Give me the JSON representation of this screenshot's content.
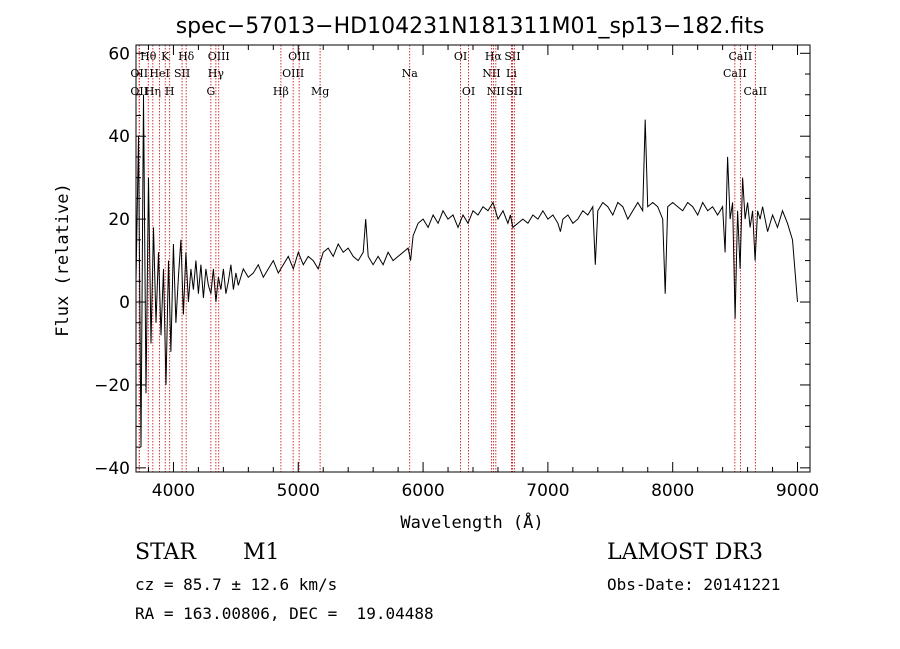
{
  "chart_data": {
    "type": "line",
    "title": "spec−57013−HD104231N181311M01_sp13−182.fits",
    "xlabel": "Wavelength (Å)",
    "ylabel": "Flux (relative)",
    "xlim": [
      3700,
      9100
    ],
    "ylim": [
      -41,
      62
    ],
    "xticks": [
      4000,
      5000,
      6000,
      7000,
      8000,
      9000
    ],
    "yticks": [
      -40,
      -20,
      0,
      20,
      40,
      60
    ],
    "ytick_labels": [
      "−40",
      "−20",
      "0",
      "20",
      "40",
      "60"
    ],
    "series": [
      {
        "color": "#000000",
        "points": [
          [
            3700,
            5
          ],
          [
            3720,
            40
          ],
          [
            3740,
            -35
          ],
          [
            3760,
            50
          ],
          [
            3780,
            -22
          ],
          [
            3800,
            30
          ],
          [
            3820,
            -10
          ],
          [
            3840,
            18
          ],
          [
            3860,
            -5
          ],
          [
            3880,
            12
          ],
          [
            3900,
            -8
          ],
          [
            3920,
            8
          ],
          [
            3940,
            -20
          ],
          [
            3960,
            10
          ],
          [
            3980,
            -12
          ],
          [
            4000,
            14
          ],
          [
            4020,
            -5
          ],
          [
            4040,
            6
          ],
          [
            4060,
            15
          ],
          [
            4080,
            -3
          ],
          [
            4100,
            12
          ],
          [
            4120,
            0
          ],
          [
            4140,
            8
          ],
          [
            4160,
            3
          ],
          [
            4180,
            10
          ],
          [
            4200,
            2
          ],
          [
            4220,
            9
          ],
          [
            4240,
            1
          ],
          [
            4260,
            8
          ],
          [
            4280,
            4
          ],
          [
            4300,
            2
          ],
          [
            4320,
            8
          ],
          [
            4340,
            0
          ],
          [
            4360,
            6
          ],
          [
            4380,
            3
          ],
          [
            4400,
            8
          ],
          [
            4420,
            2
          ],
          [
            4440,
            5
          ],
          [
            4460,
            9
          ],
          [
            4480,
            3
          ],
          [
            4500,
            7
          ],
          [
            4520,
            4
          ],
          [
            4560,
            8
          ],
          [
            4600,
            6
          ],
          [
            4640,
            7
          ],
          [
            4680,
            9
          ],
          [
            4720,
            6
          ],
          [
            4760,
            8
          ],
          [
            4800,
            10
          ],
          [
            4840,
            7
          ],
          [
            4880,
            9
          ],
          [
            4920,
            11
          ],
          [
            4960,
            8
          ],
          [
            5000,
            12
          ],
          [
            5040,
            9
          ],
          [
            5080,
            11
          ],
          [
            5120,
            10
          ],
          [
            5160,
            8
          ],
          [
            5200,
            12
          ],
          [
            5240,
            13
          ],
          [
            5280,
            11
          ],
          [
            5320,
            14
          ],
          [
            5360,
            12
          ],
          [
            5400,
            13
          ],
          [
            5440,
            11
          ],
          [
            5480,
            10
          ],
          [
            5520,
            12
          ],
          [
            5540,
            20
          ],
          [
            5560,
            11
          ],
          [
            5600,
            9
          ],
          [
            5640,
            11
          ],
          [
            5680,
            9
          ],
          [
            5720,
            12
          ],
          [
            5760,
            10
          ],
          [
            5800,
            11
          ],
          [
            5840,
            12
          ],
          [
            5880,
            13
          ],
          [
            5900,
            10
          ],
          [
            5920,
            16
          ],
          [
            5960,
            19
          ],
          [
            6000,
            20
          ],
          [
            6040,
            18
          ],
          [
            6080,
            21
          ],
          [
            6120,
            19
          ],
          [
            6160,
            22
          ],
          [
            6200,
            20
          ],
          [
            6240,
            21
          ],
          [
            6280,
            18
          ],
          [
            6320,
            21
          ],
          [
            6360,
            19
          ],
          [
            6400,
            22
          ],
          [
            6440,
            21
          ],
          [
            6480,
            23
          ],
          [
            6520,
            22
          ],
          [
            6560,
            24
          ],
          [
            6600,
            20
          ],
          [
            6640,
            22
          ],
          [
            6680,
            19
          ],
          [
            6700,
            21
          ],
          [
            6720,
            18
          ],
          [
            6760,
            19
          ],
          [
            6800,
            20
          ],
          [
            6840,
            19
          ],
          [
            6880,
            21
          ],
          [
            6920,
            20
          ],
          [
            6960,
            22
          ],
          [
            7000,
            20
          ],
          [
            7040,
            21
          ],
          [
            7080,
            19
          ],
          [
            7100,
            17
          ],
          [
            7120,
            20
          ],
          [
            7160,
            21
          ],
          [
            7200,
            19
          ],
          [
            7240,
            20
          ],
          [
            7280,
            22
          ],
          [
            7320,
            21
          ],
          [
            7360,
            23
          ],
          [
            7380,
            9
          ],
          [
            7400,
            22
          ],
          [
            7440,
            24
          ],
          [
            7480,
            23
          ],
          [
            7520,
            21
          ],
          [
            7560,
            24
          ],
          [
            7600,
            23
          ],
          [
            7640,
            20
          ],
          [
            7680,
            22
          ],
          [
            7720,
            24
          ],
          [
            7760,
            22
          ],
          [
            7780,
            44
          ],
          [
            7800,
            23
          ],
          [
            7840,
            24
          ],
          [
            7880,
            23
          ],
          [
            7920,
            20
          ],
          [
            7940,
            2
          ],
          [
            7960,
            23
          ],
          [
            8000,
            24
          ],
          [
            8040,
            23
          ],
          [
            8080,
            22
          ],
          [
            8120,
            24
          ],
          [
            8160,
            23
          ],
          [
            8200,
            21
          ],
          [
            8240,
            24
          ],
          [
            8280,
            22
          ],
          [
            8320,
            23
          ],
          [
            8360,
            21
          ],
          [
            8400,
            23
          ],
          [
            8420,
            12
          ],
          [
            8440,
            35
          ],
          [
            8460,
            20
          ],
          [
            8480,
            24
          ],
          [
            8500,
            -4
          ],
          [
            8520,
            22
          ],
          [
            8540,
            8
          ],
          [
            8560,
            30
          ],
          [
            8580,
            20
          ],
          [
            8600,
            24
          ],
          [
            8620,
            18
          ],
          [
            8640,
            22
          ],
          [
            8660,
            10
          ],
          [
            8680,
            22
          ],
          [
            8700,
            20
          ],
          [
            8720,
            23
          ],
          [
            8760,
            17
          ],
          [
            8800,
            21
          ],
          [
            8840,
            18
          ],
          [
            8880,
            22
          ],
          [
            8920,
            19
          ],
          [
            8960,
            15
          ],
          [
            9000,
            0
          ]
        ]
      }
    ],
    "line_markers": [
      {
        "x": 3726,
        "label": "OII",
        "row": 1
      },
      {
        "x": 3726,
        "label": "OII",
        "row": 2
      },
      {
        "x": 3798,
        "label": "Hθ",
        "row": 0
      },
      {
        "x": 3835,
        "label": "Hη",
        "row": 2
      },
      {
        "x": 3889,
        "label": "HeI",
        "row": 1
      },
      {
        "x": 3934,
        "label": "K",
        "row": 0
      },
      {
        "x": 3970,
        "label": "H",
        "row": 2
      },
      {
        "x": 4069,
        "label": "SII",
        "row": 1
      },
      {
        "x": 4102,
        "label": "Hδ",
        "row": 0
      },
      {
        "x": 4300,
        "label": "G",
        "row": 2
      },
      {
        "x": 4340,
        "label": "Hγ",
        "row": 1
      },
      {
        "x": 4363,
        "label": "OIII",
        "row": 0
      },
      {
        "x": 4861,
        "label": "Hβ",
        "row": 2
      },
      {
        "x": 4959,
        "label": "OIII",
        "row": 1
      },
      {
        "x": 5007,
        "label": "OIII",
        "row": 0
      },
      {
        "x": 5175,
        "label": "Mg",
        "row": 2
      },
      {
        "x": 5893,
        "label": "Na",
        "row": 1
      },
      {
        "x": 6300,
        "label": "OI",
        "row": 0
      },
      {
        "x": 6364,
        "label": "OI",
        "row": 2
      },
      {
        "x": 6548,
        "label": "NII",
        "row": 1
      },
      {
        "x": 6563,
        "label": "Hα",
        "row": 0
      },
      {
        "x": 6583,
        "label": "NII",
        "row": 2
      },
      {
        "x": 6708,
        "label": "Li",
        "row": 1
      },
      {
        "x": 6716,
        "label": "SII",
        "row": 0
      },
      {
        "x": 6731,
        "label": "SII",
        "row": 2
      },
      {
        "x": 8498,
        "label": "CaII",
        "row": 1
      },
      {
        "x": 8542,
        "label": "CaII",
        "row": 0
      },
      {
        "x": 8662,
        "label": "CaII",
        "row": 2
      }
    ],
    "marker_color": "#cc0000",
    "grid": false
  },
  "info": {
    "object_class": "STAR",
    "subclass": "M1",
    "survey": "LAMOST DR3",
    "cz": "cz = 85.7 ± 12.6 km/s",
    "coords": "RA = 163.00806, DEC =  19.04488",
    "obs_date": "Obs-Date: 20141221"
  }
}
